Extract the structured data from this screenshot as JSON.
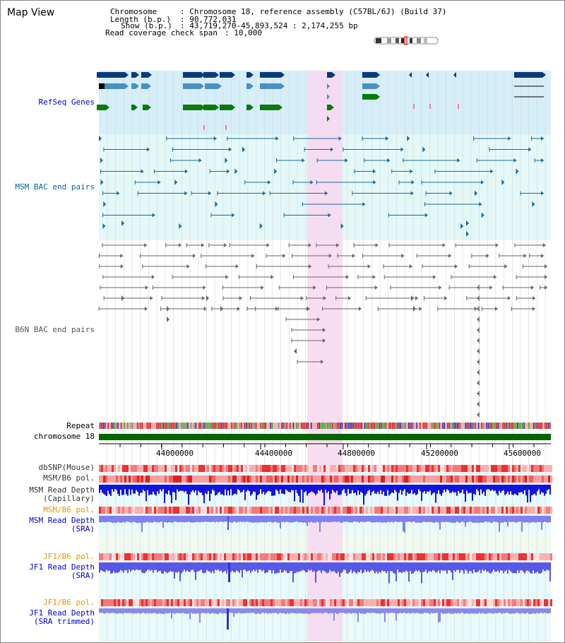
{
  "view_title": "Map View",
  "header": {
    "chromosome_key": "Chromosome",
    "chromosome_val": ": Chromosome 18, reference assembly (C57BL/6J) (Build 37)",
    "length_key": "Length (b.p.)",
    "length_val": ": 90,772,031",
    "show_key": "Show (b.p.)",
    "show_val": ": 43,719,270-45,893,524 : 2,174,255 bp",
    "span_key": "Read coverage check span",
    "span_val": ": 10,000"
  },
  "tracks": {
    "refseq": "RefSeq Genes",
    "msm_bac": "MSM BAC end pairs",
    "b6n_bac": "B6N BAC end pairs",
    "repeat": "Repeat",
    "chromosome": "chromosome 18",
    "dbsnp": "dbSNP(Mouse)",
    "msm_b6_pol_1": "MSM/B6 pol.",
    "msm_depth_cap_1": "MSM Read Depth",
    "msm_depth_cap_2": "(Capillary)",
    "msm_b6_pol_2": "MSM/B6 pol.",
    "msm_depth_sra_1": "MSM Read Depth",
    "msm_depth_sra_2": "(SRA)",
    "jf1_b6_pol_1": "JF1/B6 pol.",
    "jf1_depth_sra_1": "JF1 Read Depth",
    "jf1_depth_sra_2": "(SRA)",
    "jf1_b6_pol_2": "JF1/B6 pol.",
    "jf1_depth_trim_1": "JF1 Read Depth",
    "jf1_depth_trim_2": "(SRA trimmed)"
  },
  "axis": {
    "ticks": [
      "44000000",
      "44400000",
      "44800000",
      "45200000",
      "45600000"
    ]
  },
  "colors": {
    "refseq_bg": "#d6eef8",
    "msm_bg": "#e4f8f8",
    "highlight": "#f8d8f0",
    "gene_dark": "#0a3a7a",
    "gene_mid": "#4a90c0",
    "gene_green": "#0a7a0a",
    "msm_pair": "#1a6a9a",
    "b6n_pair": "#666666",
    "chrom_bar": "#006600"
  }
}
